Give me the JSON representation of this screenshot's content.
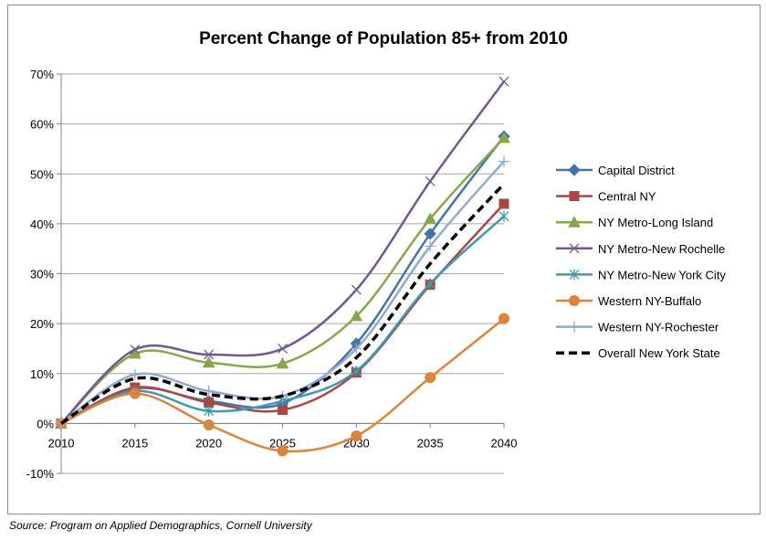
{
  "source_note": "Source:  Program on Applied Demographics, Cornell University",
  "chart_data": {
    "type": "line",
    "title": "Percent Change of Population 85+ from 2010",
    "xlabel": "",
    "ylabel": "",
    "x": [
      "2010",
      "2015",
      "2020",
      "2025",
      "2030",
      "2035",
      "2040"
    ],
    "ylim": [
      -10,
      70
    ],
    "yticks": [
      -10,
      0,
      10,
      20,
      30,
      40,
      50,
      60,
      70
    ],
    "ytick_labels": [
      "-10%",
      "0%",
      "10%",
      "20%",
      "30%",
      "40%",
      "50%",
      "60%",
      "70%"
    ],
    "grid": true,
    "smooth": true,
    "legend_position": "right",
    "series": [
      {
        "name": "Capital District",
        "values": [
          0,
          7.0,
          4.5,
          4.0,
          16.0,
          38.0,
          57.5
        ],
        "color": "#4572a7",
        "marker": "diamond",
        "dashed": false
      },
      {
        "name": "Central NY",
        "values": [
          0,
          7.2,
          4.2,
          2.7,
          10.2,
          27.8,
          44.0
        ],
        "color": "#aa4643",
        "marker": "square",
        "dashed": false
      },
      {
        "name": "NY Metro-Long Island",
        "values": [
          0,
          14.0,
          12.2,
          12.0,
          21.5,
          41.0,
          57.2
        ],
        "color": "#89a54e",
        "marker": "triangle",
        "dashed": false
      },
      {
        "name": "NY Metro-New Rochelle",
        "values": [
          0,
          14.8,
          13.8,
          15.0,
          26.8,
          48.5,
          68.5
        ],
        "color": "#71588f",
        "marker": "x",
        "dashed": false
      },
      {
        "name": "NY Metro-New York City",
        "values": [
          0,
          6.5,
          2.5,
          4.5,
          10.5,
          28.0,
          41.5
        ],
        "color": "#4198af",
        "marker": "asterisk",
        "dashed": false
      },
      {
        "name": "Western NY-Buffalo",
        "values": [
          0,
          6.0,
          -0.3,
          -5.5,
          -2.5,
          9.2,
          21.0
        ],
        "color": "#db843d",
        "marker": "circle",
        "dashed": false
      },
      {
        "name": "Western NY-Rochester",
        "values": [
          0,
          9.8,
          6.5,
          5.5,
          15.0,
          35.5,
          52.5
        ],
        "color": "#93a9cf",
        "marker": "plus",
        "dashed": false
      },
      {
        "name": "Overall New York State",
        "values": [
          0,
          9.0,
          5.8,
          5.5,
          13.2,
          32.0,
          48.0
        ],
        "color": "#000000",
        "marker": "none",
        "dashed": true
      }
    ]
  }
}
